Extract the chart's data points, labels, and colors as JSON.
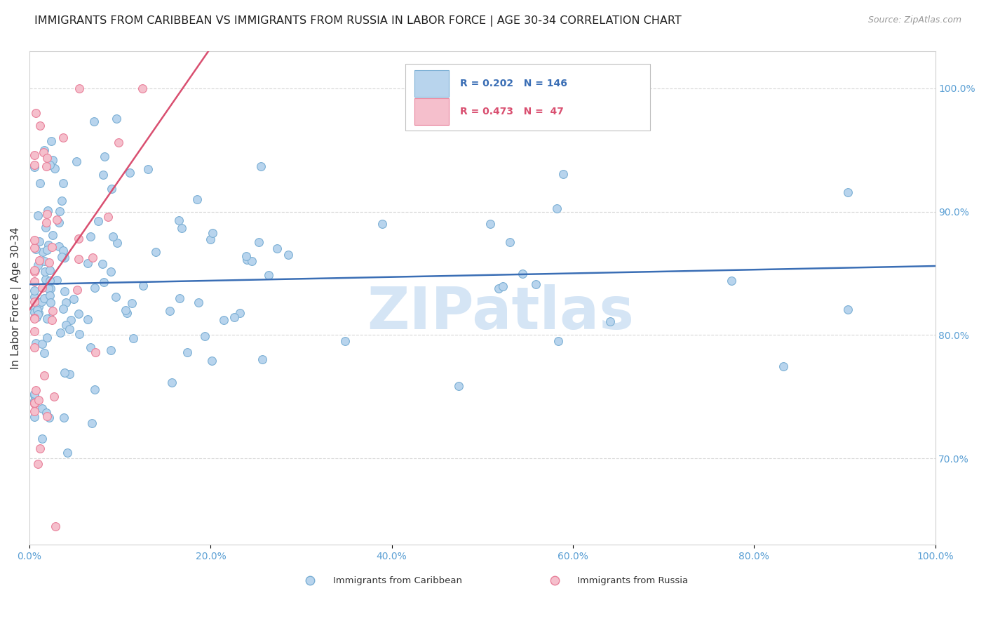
{
  "title": "IMMIGRANTS FROM CARIBBEAN VS IMMIGRANTS FROM RUSSIA IN LABOR FORCE | AGE 30-34 CORRELATION CHART",
  "source_text": "Source: ZipAtlas.com",
  "ylabel": "In Labor Force | Age 30-34",
  "watermark": "ZIPatlas",
  "xlim": [
    0.0,
    1.0
  ],
  "ylim": [
    0.63,
    1.03
  ],
  "right_ytick_labels": [
    "70.0%",
    "80.0%",
    "90.0%",
    "100.0%"
  ],
  "right_ytick_values": [
    0.7,
    0.8,
    0.9,
    1.0
  ],
  "bottom_xtick_labels": [
    "0.0%",
    "20.0%",
    "40.0%",
    "60.0%",
    "80.0%",
    "100.0%"
  ],
  "bottom_xtick_values": [
    0.0,
    0.2,
    0.4,
    0.6,
    0.8,
    1.0
  ],
  "caribbean_R": 0.202,
  "caribbean_N": 146,
  "russia_R": 0.473,
  "russia_N": 47,
  "caribbean_color": "#b8d4ed",
  "caribbean_edge_color": "#7bafd4",
  "russia_color": "#f5bfcc",
  "russia_edge_color": "#e8809a",
  "caribbean_line_color": "#3a6eb5",
  "russia_line_color": "#d94f70",
  "legend_box_edge": "#c0c0c0",
  "tick_color": "#5a9fd4",
  "grid_color": "#d8d8d8",
  "title_color": "#222222",
  "source_color": "#999999",
  "ylabel_color": "#333333",
  "watermark_color": "#d5e5f5",
  "background_color": "#ffffff",
  "title_fontsize": 11.5,
  "source_fontsize": 9,
  "ylabel_fontsize": 11,
  "tick_fontsize": 10,
  "legend_fontsize": 10,
  "watermark_fontsize": 60,
  "marker_size": 72,
  "marker_linewidth": 0.8
}
